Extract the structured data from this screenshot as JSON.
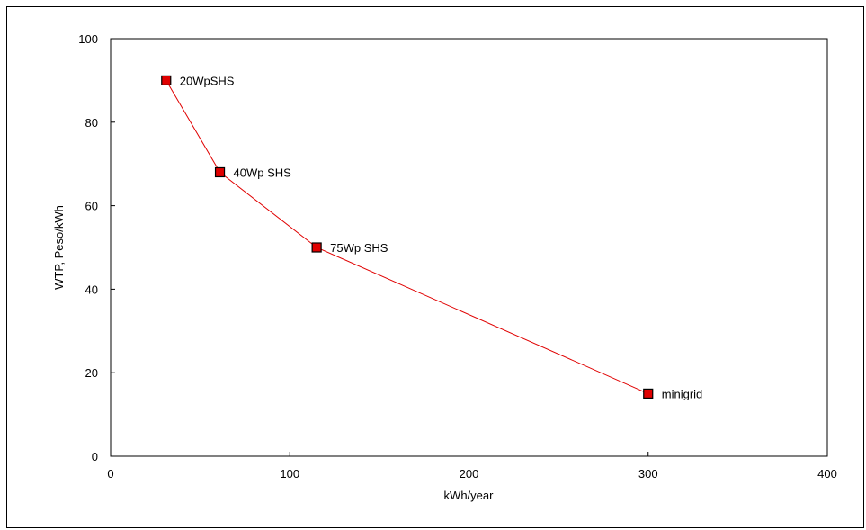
{
  "chart_data": {
    "type": "line",
    "title": "",
    "xlabel": "kWh/year",
    "ylabel": "WTP, Peso/kWh",
    "xlim": [
      0,
      400
    ],
    "ylim": [
      0,
      100
    ],
    "xticks": [
      0,
      100,
      200,
      300,
      400
    ],
    "yticks": [
      0,
      20,
      40,
      60,
      80,
      100
    ],
    "grid": false,
    "legend": "none",
    "series": [
      {
        "color": "#e00000",
        "marker": "square",
        "points": [
          {
            "x": 31,
            "y": 90,
            "label": "20WpSHS"
          },
          {
            "x": 61,
            "y": 68,
            "label": "40Wp SHS"
          },
          {
            "x": 115,
            "y": 50,
            "label": "75Wp SHS"
          },
          {
            "x": 300,
            "y": 15,
            "label": "minigrid"
          }
        ]
      }
    ]
  }
}
